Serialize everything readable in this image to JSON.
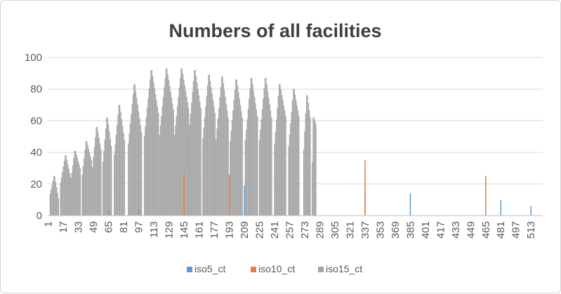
{
  "chart_data": {
    "type": "bar",
    "title": "Numbers of all facilities",
    "xlabel": "",
    "ylabel": "",
    "ylim": [
      0,
      100
    ],
    "yticks": [
      0,
      20,
      40,
      60,
      80,
      100
    ],
    "x_count": 525,
    "xtick_labels": [
      "1",
      "17",
      "33",
      "49",
      "65",
      "81",
      "97",
      "113",
      "129",
      "145",
      "161",
      "177",
      "193",
      "209",
      "225",
      "241",
      "257",
      "273",
      "289",
      "305",
      "321",
      "337",
      "353",
      "369",
      "385",
      "401",
      "417",
      "433",
      "449",
      "465",
      "481",
      "497",
      "513"
    ],
    "grid": true,
    "legend_position": "bottom",
    "series": [
      {
        "name": "iso5_ct",
        "color": "#5b9bd5",
        "values": [
          [
            65,
            3
          ],
          [
            97,
            4
          ],
          [
            209,
            19
          ],
          [
            337,
            15
          ],
          [
            385,
            14
          ],
          [
            481,
            10
          ],
          [
            513,
            6
          ]
        ]
      },
      {
        "name": "iso10_ct",
        "color": "#ed7d31",
        "values": [
          [
            145,
            26
          ],
          [
            193,
            26
          ],
          [
            337,
            35
          ],
          [
            465,
            25
          ]
        ]
      },
      {
        "name": "iso15_ct",
        "color": "#a5a5a5",
        "values": [
          [
            3,
            25,
            11,
            10
          ],
          [
            14,
            38,
            24,
            12
          ],
          [
            25,
            41,
            30,
            11
          ],
          [
            37,
            47,
            35,
            11
          ],
          [
            48,
            56,
            42,
            10
          ],
          [
            59,
            62,
            44,
            10
          ],
          [
            71,
            70,
            48,
            12
          ],
          [
            86,
            83,
            53,
            15
          ],
          [
            103,
            92,
            65,
            16
          ],
          [
            119,
            93,
            67,
            16
          ],
          [
            135,
            93,
            68,
            16
          ],
          [
            150,
            92,
            68,
            14
          ],
          [
            165,
            89,
            65,
            14
          ],
          [
            179,
            88,
            62,
            14
          ],
          [
            194,
            86,
            62,
            14
          ],
          [
            210,
            87,
            63,
            14
          ],
          [
            225,
            87,
            62,
            14
          ],
          [
            241,
            83,
            63,
            13
          ],
          [
            256,
            80,
            63,
            12
          ],
          [
            272,
            76,
            62,
            8
          ],
          [
            281,
            62,
            58,
            5
          ]
        ]
      }
    ]
  }
}
